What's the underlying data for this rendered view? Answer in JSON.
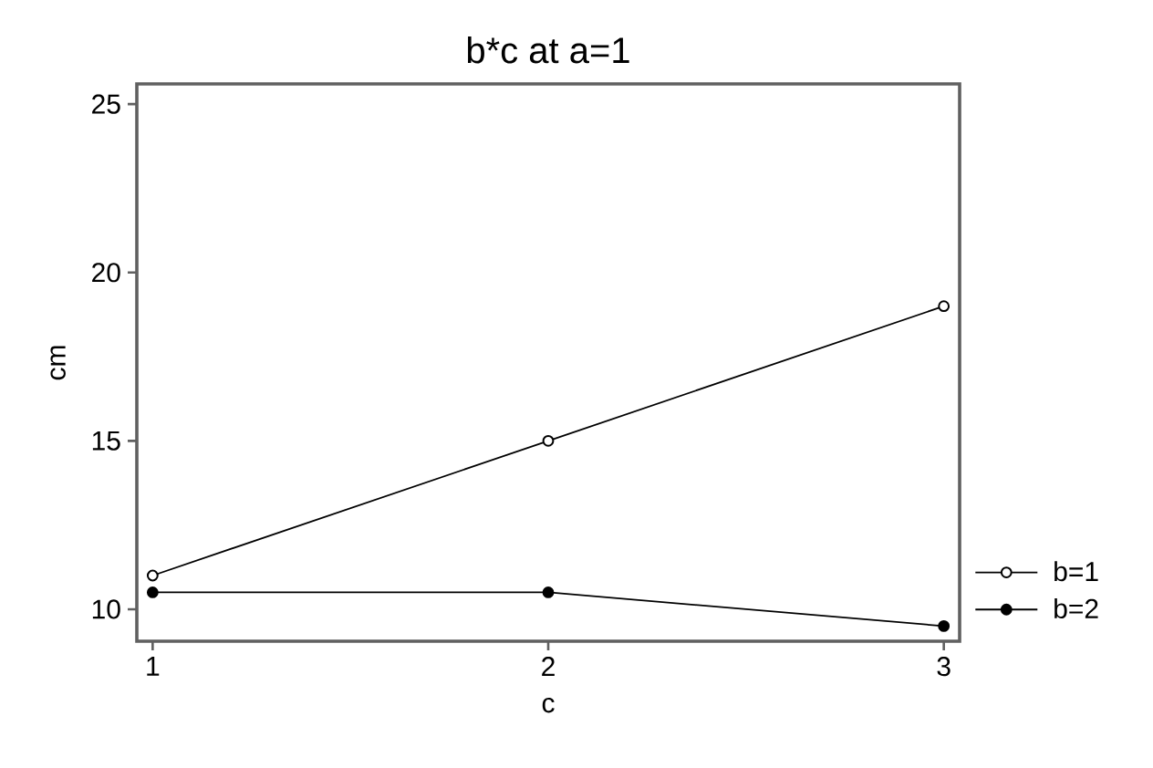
{
  "chart_data": {
    "type": "line",
    "title": "b*c at a=1",
    "xlabel": "c",
    "ylabel": "cm",
    "x": [
      1,
      2,
      3
    ],
    "series": [
      {
        "name": "b=1",
        "color": "#000000",
        "values": [
          11,
          15,
          19
        ]
      },
      {
        "name": "b=2",
        "color": "#000000",
        "values": [
          10.5,
          10.5,
          9.5
        ]
      }
    ],
    "xlim": [
      0.96,
      3.04
    ],
    "ylim": [
      9.05,
      25.6
    ],
    "xticks": [
      1,
      2,
      3
    ],
    "yticks": [
      10,
      15,
      20,
      25
    ],
    "grid": false,
    "legend": "bottom right",
    "marker": "circle",
    "line_style": "solid"
  }
}
